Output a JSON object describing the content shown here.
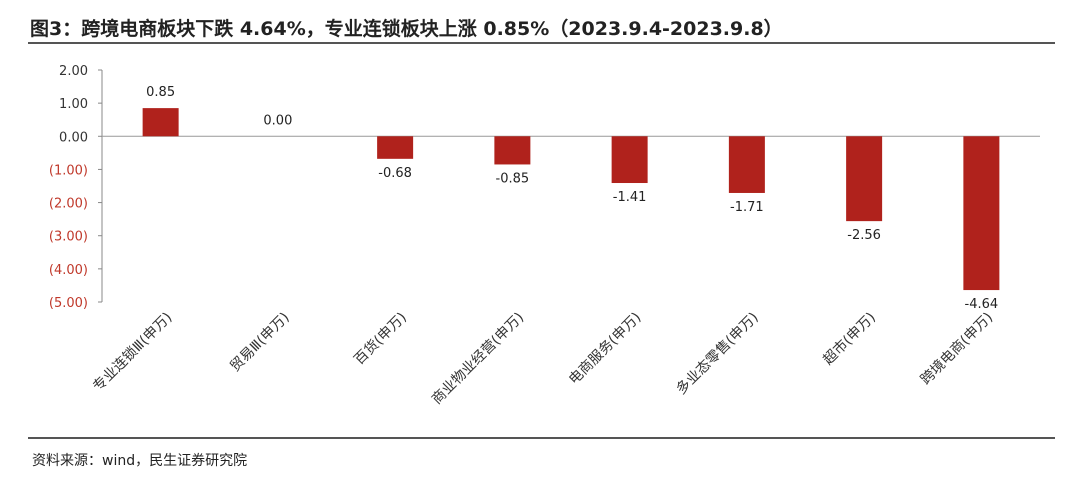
{
  "title": "图3：跨境电商板块下跌 4.64%，专业连锁板块上涨 0.85%（2023.9.4-2023.9.8）",
  "source": "资料来源：wind，民生证券研究院",
  "colors": {
    "bar": "#b0221c",
    "negative_tick": "#c0392b",
    "positive_tick": "#333333"
  },
  "chart_data": {
    "type": "bar",
    "categories": [
      "专业连锁Ⅲ(申万)",
      "贸易Ⅲ(申万)",
      "百货(申万)",
      "商业物业经营(申万)",
      "电商服务(申万)",
      "多业态零售(申万)",
      "超市(申万)",
      "跨境电商(申万)"
    ],
    "values": [
      0.85,
      0.0,
      -0.68,
      -0.85,
      -1.41,
      -1.71,
      -2.56,
      -4.64
    ],
    "data_labels": [
      "0.85",
      "0.00",
      "-0.68",
      "-0.85",
      "-1.41",
      "-1.71",
      "-2.56",
      "-4.64"
    ],
    "y_ticks": [
      2,
      1,
      0,
      -1,
      -2,
      -3,
      -4,
      -5
    ],
    "y_tick_labels": [
      "2.00",
      "1.00",
      "0.00",
      "(1.00)",
      "(2.00)",
      "(3.00)",
      "(4.00)",
      "(5.00)"
    ],
    "ylim": [
      -5,
      2
    ],
    "grid": false,
    "legend": "none"
  }
}
